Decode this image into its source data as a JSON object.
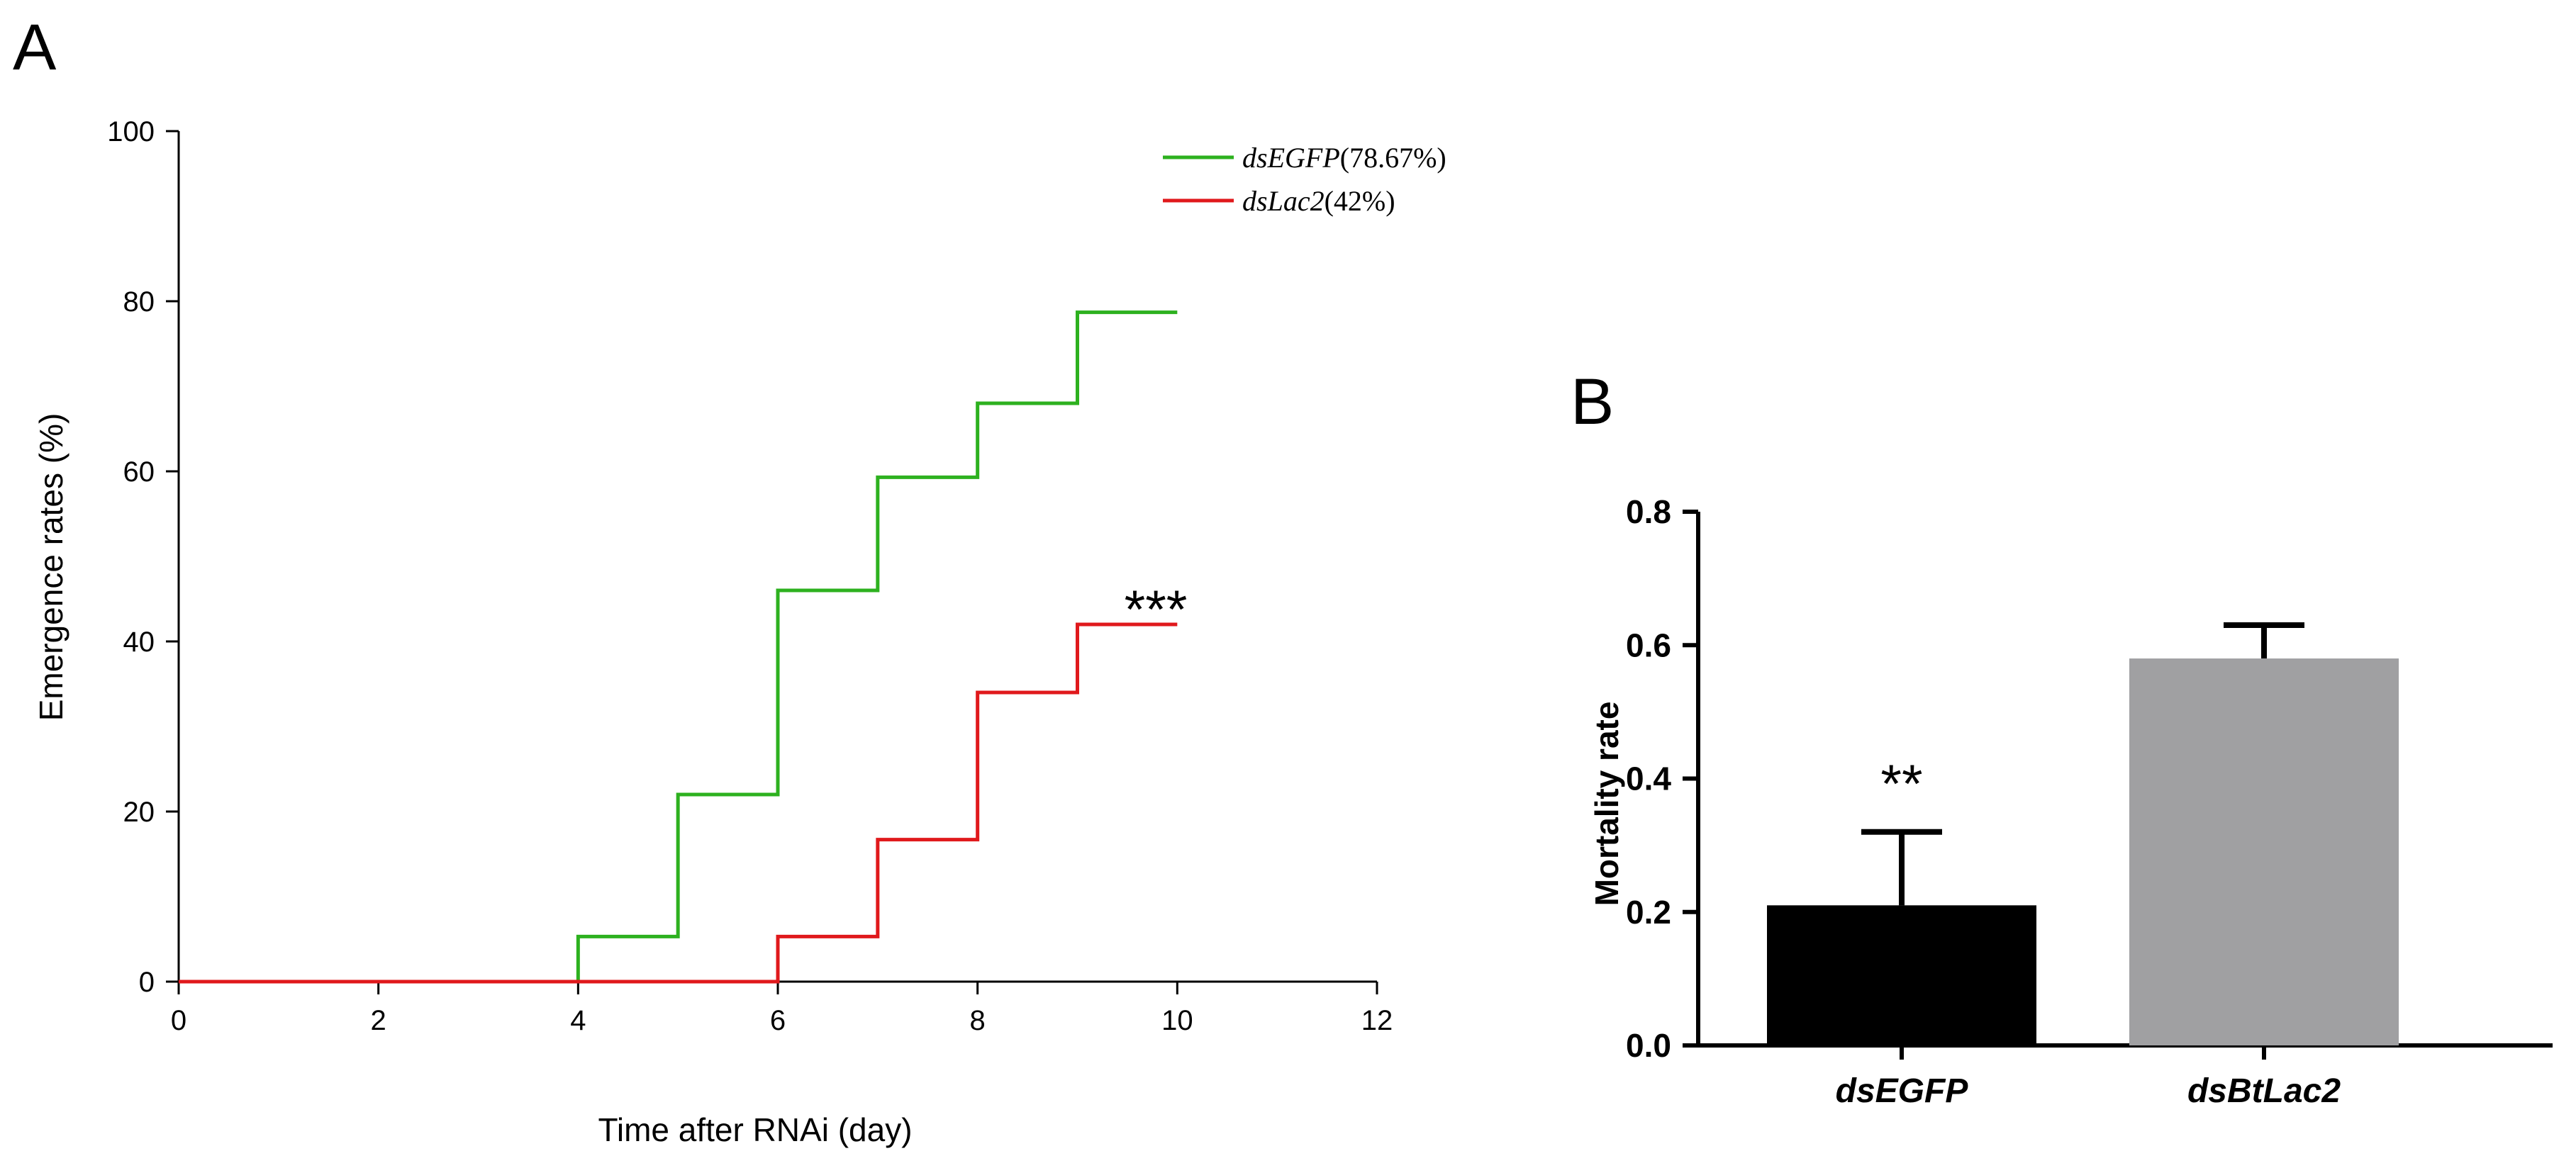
{
  "panels": {
    "a": {
      "letter": "A",
      "xlabel": "Time after RNAi (day)",
      "ylabel": "Emergence rates (%)",
      "significance": "***",
      "legend": [
        {
          "name": "dsEGFP",
          "suffix": "(78.67%)",
          "color": "#2db11f"
        },
        {
          "name": "dsLac2",
          "suffix": "(42%)",
          "color": "#e0191c"
        }
      ]
    },
    "b": {
      "letter": "B",
      "ylabel": "Mortality rate",
      "significance": "**"
    }
  },
  "chart_data": [
    {
      "type": "line",
      "step": true,
      "xlim": [
        0,
        12
      ],
      "ylim": [
        0,
        100
      ],
      "xticks": [
        0,
        2,
        4,
        6,
        8,
        10,
        12
      ],
      "yticks": [
        0,
        20,
        40,
        60,
        80,
        100
      ],
      "grid": false,
      "legend_position": "top-right",
      "series": [
        {
          "name": "dsEGFP(78.67%)",
          "color": "#2db11f",
          "x": [
            0,
            4,
            5,
            6,
            7,
            8,
            9,
            10
          ],
          "y": [
            0,
            5.3,
            22,
            46,
            59.3,
            68,
            78.7,
            78.7
          ]
        },
        {
          "name": "dsLac2(42%)",
          "color": "#e0191c",
          "x": [
            0,
            6,
            7,
            8,
            9,
            10
          ],
          "y": [
            0,
            5.3,
            16.7,
            34,
            42,
            42
          ]
        }
      ],
      "annotations": [
        {
          "text": "***",
          "x": 9.5,
          "y": 42
        }
      ]
    },
    {
      "type": "bar",
      "categories": [
        "dsEGFP",
        "dsBtLac2"
      ],
      "values": [
        0.21,
        0.58
      ],
      "errors": [
        0.11,
        0.05
      ],
      "colors": [
        "#000000",
        "#a0a0a2"
      ],
      "ylim": [
        0,
        0.8
      ],
      "yticks": [
        "0.0",
        "0.2",
        "0.4",
        "0.6",
        "0.8"
      ],
      "grid": false,
      "annotations": [
        {
          "text": "**",
          "category": "dsEGFP"
        }
      ]
    }
  ]
}
